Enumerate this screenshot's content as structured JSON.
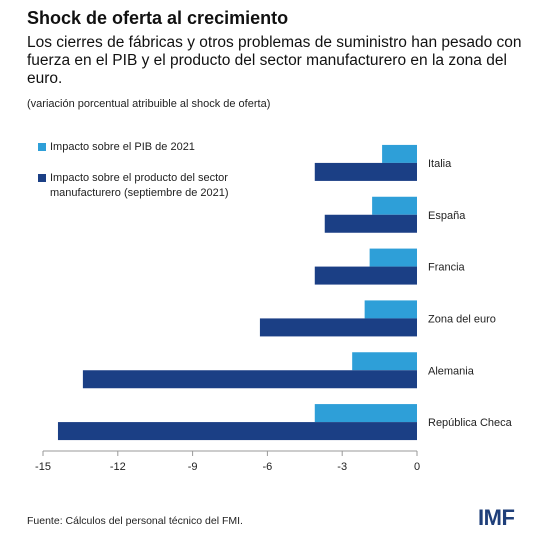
{
  "header": {
    "title": "Shock de oferta al crecimiento",
    "subtitle": "Los cierres de fábricas y otros problemas de suministro han pesado con fuerza en el PIB y el producto del sector manufacturero en la zona del euro.",
    "note": "(variación porcentual atribuible al shock de oferta)"
  },
  "footer": {
    "source": "Fuente: Cálculos del personal técnico del FMI.",
    "logo": "IMF"
  },
  "colors": {
    "gdp": "#2e9fd8",
    "manufacturing": "#1b3f85",
    "axis": "#999999"
  },
  "chart_data": {
    "type": "bar",
    "orientation": "horizontal",
    "categories": [
      "Italia",
      "España",
      "Francia",
      "Zona del euro",
      "Alemania",
      "República Checa"
    ],
    "series": [
      {
        "name": "Impacto sobre el PIB de 2021",
        "values": [
          -1.4,
          -1.8,
          -1.9,
          -2.1,
          -2.6,
          -4.1
        ]
      },
      {
        "name": "Impacto sobre el producto del sector manufacturero (septiembre de 2021)",
        "values": [
          -4.1,
          -3.7,
          -4.1,
          -6.3,
          -13.4,
          -14.4
        ]
      }
    ],
    "xlim": [
      -15,
      0
    ],
    "xticks": [
      -15,
      -12,
      -9,
      -6,
      -3,
      0
    ],
    "legend_position": "top-left",
    "grid": false
  }
}
